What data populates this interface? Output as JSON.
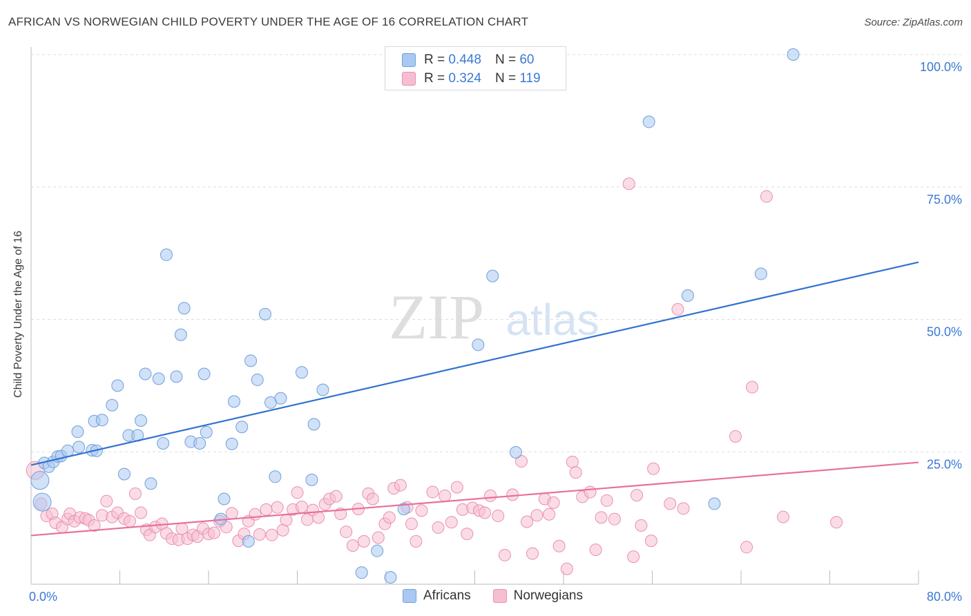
{
  "title": "AFRICAN VS NORWEGIAN CHILD POVERTY UNDER THE AGE OF 16 CORRELATION CHART",
  "source": "Source: ZipAtlas.com",
  "watermark": {
    "zip": "ZIP",
    "atlas": "atlas"
  },
  "legend": {
    "africans": {
      "r_label": "R =",
      "r_value": "0.448",
      "n_label": "N =",
      "n_value": "60"
    },
    "norwegians": {
      "r_label": "R =",
      "r_value": "0.324",
      "n_label": "N =",
      "n_value": "119"
    }
  },
  "colors": {
    "africans_fill": "#a9c9f2",
    "africans_stroke": "#6f9fdb",
    "africans_line": "#2f72d0",
    "norwegians_fill": "#f6bfd1",
    "norwegians_stroke": "#ea8fad",
    "norwegians_line": "#e8709a",
    "tick_label": "#3a78d4",
    "grid": "#dddddd",
    "axis": "#bbbbbb"
  },
  "chart_data": {
    "type": "scatter",
    "title": "AFRICAN VS NORWEGIAN CHILD POVERTY UNDER THE AGE OF 16 CORRELATION CHART",
    "xlabel": "",
    "ylabel": "Child Poverty Under the Age of 16",
    "xlim": [
      0,
      80
    ],
    "ylim": [
      0,
      100
    ],
    "x_tick_labels": [
      "0.0%",
      "80.0%"
    ],
    "y_ticks": [
      25,
      50,
      75,
      100
    ],
    "y_tick_labels": [
      "25.0%",
      "50.0%",
      "75.0%",
      "100.0%"
    ],
    "grid": true,
    "legend_position": "top-center",
    "series": [
      {
        "name": "Africans",
        "r": 0.448,
        "n": 60,
        "trend": {
          "x": [
            0,
            80
          ],
          "y": [
            22.5,
            60.8
          ]
        },
        "points": [
          [
            0.8,
            19.6
          ],
          [
            1.2,
            22.9
          ],
          [
            1.6,
            22.2
          ],
          [
            2.0,
            23.1
          ],
          [
            2.4,
            24.1
          ],
          [
            2.7,
            24.2
          ],
          [
            3.3,
            25.2
          ],
          [
            4.3,
            25.9
          ],
          [
            4.2,
            28.8
          ],
          [
            5.5,
            25.3
          ],
          [
            5.7,
            30.8
          ],
          [
            6.4,
            31.0
          ],
          [
            5.9,
            25.2
          ],
          [
            7.3,
            33.8
          ],
          [
            7.8,
            37.5
          ],
          [
            8.4,
            20.8
          ],
          [
            8.8,
            28.1
          ],
          [
            9.6,
            28.1
          ],
          [
            9.9,
            30.9
          ],
          [
            10.3,
            39.7
          ],
          [
            10.8,
            19.0
          ],
          [
            11.5,
            38.8
          ],
          [
            11.9,
            26.6
          ],
          [
            12.2,
            62.2
          ],
          [
            13.1,
            39.2
          ],
          [
            13.5,
            47.1
          ],
          [
            13.8,
            52.1
          ],
          [
            14.4,
            26.9
          ],
          [
            15.2,
            26.6
          ],
          [
            15.6,
            39.7
          ],
          [
            15.8,
            28.7
          ],
          [
            17.1,
            12.3
          ],
          [
            17.4,
            16.1
          ],
          [
            18.1,
            26.5
          ],
          [
            18.3,
            34.5
          ],
          [
            19.0,
            29.7
          ],
          [
            19.6,
            8.1
          ],
          [
            19.8,
            42.2
          ],
          [
            20.4,
            38.6
          ],
          [
            21.1,
            51.0
          ],
          [
            21.6,
            34.3
          ],
          [
            22.0,
            20.3
          ],
          [
            22.5,
            35.1
          ],
          [
            24.4,
            40.0
          ],
          [
            25.3,
            19.7
          ],
          [
            25.5,
            30.2
          ],
          [
            26.3,
            36.7
          ],
          [
            29.8,
            2.2
          ],
          [
            31.2,
            6.3
          ],
          [
            32.4,
            1.3
          ],
          [
            33.6,
            14.2
          ],
          [
            40.3,
            45.2
          ],
          [
            41.6,
            58.2
          ],
          [
            43.7,
            24.9
          ],
          [
            55.7,
            87.3
          ],
          [
            59.2,
            54.5
          ],
          [
            61.6,
            15.2
          ],
          [
            65.8,
            58.6
          ],
          [
            68.7,
            100.0
          ],
          [
            1.0,
            15.5
          ]
        ]
      },
      {
        "name": "Norwegians",
        "r": 0.324,
        "n": 119,
        "trend": {
          "x": [
            0,
            80
          ],
          "y": [
            9.2,
            23.0
          ]
        },
        "points": [
          [
            0.4,
            21.5
          ],
          [
            0.9,
            15.2
          ],
          [
            1.4,
            12.9
          ],
          [
            1.9,
            13.3
          ],
          [
            2.2,
            11.6
          ],
          [
            2.8,
            10.8
          ],
          [
            3.3,
            12.3
          ],
          [
            3.5,
            13.3
          ],
          [
            3.9,
            11.9
          ],
          [
            4.4,
            12.6
          ],
          [
            4.9,
            12.4
          ],
          [
            5.2,
            12.1
          ],
          [
            5.7,
            11.1
          ],
          [
            6.4,
            13.0
          ],
          [
            6.8,
            15.7
          ],
          [
            7.3,
            12.7
          ],
          [
            7.8,
            13.5
          ],
          [
            8.4,
            12.4
          ],
          [
            8.9,
            11.9
          ],
          [
            9.4,
            17.1
          ],
          [
            9.9,
            13.5
          ],
          [
            10.4,
            10.3
          ],
          [
            10.7,
            9.3
          ],
          [
            11.2,
            10.8
          ],
          [
            11.8,
            11.4
          ],
          [
            12.2,
            9.6
          ],
          [
            12.7,
            8.6
          ],
          [
            13.3,
            8.4
          ],
          [
            13.6,
            10.5
          ],
          [
            14.1,
            8.6
          ],
          [
            14.6,
            9.3
          ],
          [
            15.0,
            9.0
          ],
          [
            15.5,
            10.5
          ],
          [
            16.0,
            9.5
          ],
          [
            16.5,
            9.7
          ],
          [
            17.0,
            11.9
          ],
          [
            17.6,
            10.8
          ],
          [
            18.1,
            13.4
          ],
          [
            18.7,
            8.2
          ],
          [
            19.2,
            9.5
          ],
          [
            19.6,
            11.9
          ],
          [
            20.2,
            13.2
          ],
          [
            20.6,
            9.4
          ],
          [
            21.2,
            14.1
          ],
          [
            21.7,
            9.3
          ],
          [
            22.2,
            14.5
          ],
          [
            22.7,
            10.2
          ],
          [
            23.0,
            12.1
          ],
          [
            23.6,
            14.1
          ],
          [
            24.0,
            17.3
          ],
          [
            24.4,
            14.6
          ],
          [
            24.9,
            12.2
          ],
          [
            25.4,
            14.0
          ],
          [
            25.9,
            12.6
          ],
          [
            26.5,
            15.1
          ],
          [
            26.9,
            16.1
          ],
          [
            27.5,
            16.6
          ],
          [
            27.9,
            13.3
          ],
          [
            28.4,
            9.9
          ],
          [
            29.0,
            7.3
          ],
          [
            29.5,
            14.2
          ],
          [
            30.0,
            8.1
          ],
          [
            30.4,
            17.1
          ],
          [
            30.8,
            16.1
          ],
          [
            31.3,
            8.8
          ],
          [
            31.9,
            11.4
          ],
          [
            32.3,
            12.6
          ],
          [
            32.7,
            18.1
          ],
          [
            33.3,
            18.7
          ],
          [
            33.9,
            14.5
          ],
          [
            34.3,
            11.4
          ],
          [
            34.7,
            8.1
          ],
          [
            35.2,
            13.9
          ],
          [
            36.2,
            17.4
          ],
          [
            36.7,
            10.7
          ],
          [
            37.3,
            16.7
          ],
          [
            37.9,
            11.7
          ],
          [
            38.4,
            18.3
          ],
          [
            38.9,
            14.1
          ],
          [
            39.3,
            9.5
          ],
          [
            39.8,
            14.4
          ],
          [
            40.4,
            13.9
          ],
          [
            40.9,
            13.5
          ],
          [
            41.4,
            16.7
          ],
          [
            42.1,
            12.9
          ],
          [
            42.7,
            5.5
          ],
          [
            43.4,
            16.9
          ],
          [
            44.2,
            23.2
          ],
          [
            44.7,
            11.8
          ],
          [
            45.2,
            5.8
          ],
          [
            45.6,
            13.0
          ],
          [
            46.3,
            16.1
          ],
          [
            46.7,
            13.2
          ],
          [
            47.1,
            15.4
          ],
          [
            47.6,
            7.2
          ],
          [
            48.8,
            23.1
          ],
          [
            49.1,
            21.1
          ],
          [
            48.3,
            2.9
          ],
          [
            49.7,
            16.5
          ],
          [
            50.4,
            17.4
          ],
          [
            50.9,
            6.5
          ],
          [
            51.4,
            12.6
          ],
          [
            51.9,
            15.8
          ],
          [
            52.6,
            12.3
          ],
          [
            53.9,
            75.6
          ],
          [
            54.3,
            5.2
          ],
          [
            54.6,
            16.8
          ],
          [
            55.0,
            11.1
          ],
          [
            55.9,
            8.2
          ],
          [
            56.1,
            21.8
          ],
          [
            57.6,
            15.2
          ],
          [
            58.3,
            51.9
          ],
          [
            58.8,
            14.3
          ],
          [
            63.5,
            27.9
          ],
          [
            64.5,
            7.0
          ],
          [
            65.0,
            37.2
          ],
          [
            66.3,
            73.2
          ],
          [
            67.8,
            12.7
          ],
          [
            72.6,
            11.7
          ]
        ]
      }
    ]
  }
}
